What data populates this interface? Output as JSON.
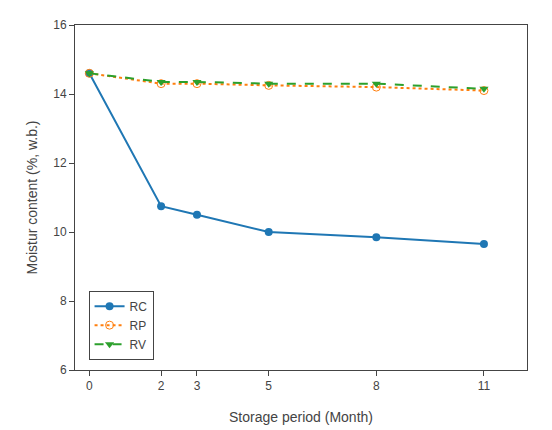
{
  "chart_data": {
    "type": "line",
    "xlabel": "Storage period (Month)",
    "ylabel": "Moistur content (%, w.b.)",
    "x": [
      0,
      2,
      3,
      5,
      8,
      11
    ],
    "series": [
      {
        "name": "RC",
        "values": [
          14.6,
          10.75,
          10.5,
          10.0,
          9.85,
          9.65
        ],
        "marker": "circle",
        "line_style": "solid"
      },
      {
        "name": "RP",
        "values": [
          14.6,
          14.3,
          14.3,
          14.25,
          14.2,
          14.1
        ],
        "marker": "circle-open",
        "line_style": "dotted"
      },
      {
        "name": "RV",
        "values": [
          14.6,
          14.35,
          14.35,
          14.3,
          14.3,
          14.15
        ],
        "marker": "triangle-down",
        "line_style": "dashed"
      }
    ],
    "xlim": [
      -0.4,
      12.2
    ],
    "ylim": [
      6,
      16
    ],
    "xticks": [
      0,
      2,
      3,
      5,
      8,
      11
    ],
    "yticks": [
      6,
      8,
      10,
      12,
      14,
      16
    ],
    "grid": false,
    "legend": "lower left"
  }
}
